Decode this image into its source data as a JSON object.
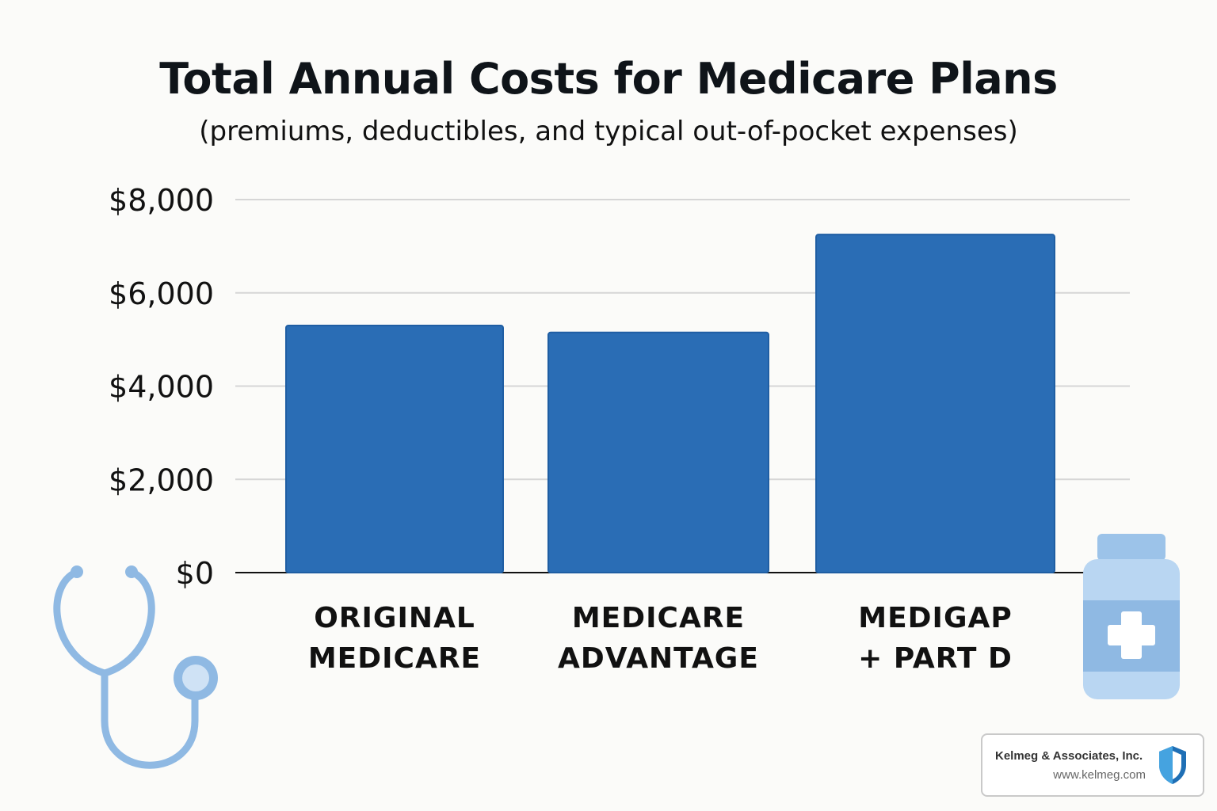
{
  "chart_data": {
    "type": "bar",
    "title": "Total Annual Costs for Medicare Plans",
    "subtitle": "(premiums, deductibles, and typical out-of-pocket expenses)",
    "categories": [
      [
        "ORIGINAL",
        "MEDICARE"
      ],
      [
        "MEDICARE",
        "ADVANTAGE"
      ],
      [
        "MEDIGAP",
        "+ PART D"
      ]
    ],
    "values": [
      5300,
      5150,
      7250
    ],
    "ylim": [
      0,
      8000
    ],
    "yticks": [
      0,
      2000,
      4000,
      6000,
      8000
    ],
    "ytick_labels": [
      "$0",
      "$2,000",
      "$4,000",
      "$6,000",
      "$8,000"
    ],
    "xlabel": "",
    "ylabel": "",
    "grid": true,
    "bar_color": "#2a6db5"
  },
  "logo": {
    "name": "Kelmeg & Associates, Inc.",
    "url": "www.kelmeg.com"
  },
  "decorations": {
    "left_icon": "stethoscope-icon",
    "right_icon": "medicine-bottle-icon",
    "icon_color": "#8fb9e3"
  }
}
